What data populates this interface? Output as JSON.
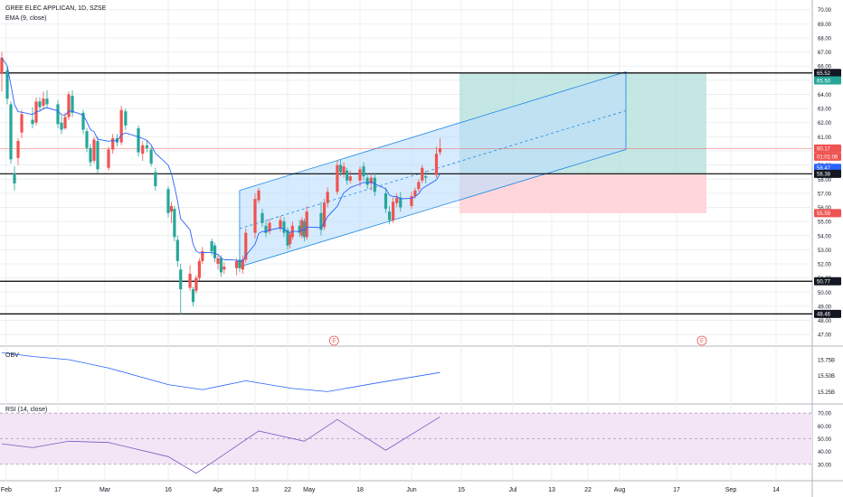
{
  "header": {
    "symbol_line": "GREE ELEC APPLICAN, 1D, SZSE",
    "indicator_line": "EMA (9, close)"
  },
  "colors": {
    "up": "#ef5350",
    "down": "#26a69a",
    "ema": "#2962ff",
    "channel_fill": "#bbdefb",
    "channel_line": "#1e88e5",
    "target_zone": "#b2dfdb",
    "stop_zone": "#ffcdd2",
    "horizontal_line": "#000000",
    "rsi_band": "#f3e5f5",
    "obv_line": "#2962ff",
    "rsi_line": "#7e57c2",
    "grid": "#eceff1"
  },
  "chart_data": [
    {
      "type": "candlestick",
      "title": "GREE ELEC APPLICAN, 1D, SZSE",
      "ylim": [
        46.5,
        70.3
      ],
      "y_ticks": [
        "70.00",
        "69.00",
        "68.00",
        "67.00",
        "66.00",
        "65.00",
        "64.00",
        "63.00",
        "62.00",
        "61.00",
        "60.00",
        "59.00",
        "58.00",
        "57.00",
        "56.00",
        "55.00",
        "54.00",
        "53.00",
        "52.00",
        "51.00",
        "50.00",
        "49.00",
        "48.00",
        "47.00"
      ],
      "x_ticks": [
        "Feb",
        "17",
        "Mar",
        "16",
        "Apr",
        "13",
        "22",
        "May",
        "18",
        "Jun",
        "15",
        "Jul",
        "13",
        "22",
        "Aug",
        "17",
        "Sep",
        "14"
      ],
      "price_labels": [
        {
          "value": "65.52",
          "kind": "line"
        },
        {
          "value": "65.50",
          "kind": "target"
        },
        {
          "value": "60.17",
          "kind": "last"
        },
        {
          "value": "01:01:06",
          "kind": "countdown"
        },
        {
          "value": "58.47",
          "kind": "ema"
        },
        {
          "value": "58.38",
          "kind": "line"
        },
        {
          "value": "55.59",
          "kind": "stop"
        },
        {
          "value": "50.77",
          "kind": "line"
        },
        {
          "value": "48.46",
          "kind": "line"
        }
      ],
      "horizontal_lines": [
        65.52,
        58.38,
        50.77,
        48.46
      ],
      "last_price": 60.17,
      "position": {
        "entry": 58.4,
        "target": 65.5,
        "stop": 55.59
      },
      "channel": {
        "start_date": "2020-04-08",
        "end_date": "2020-08-03",
        "lower_start": 51.8,
        "lower_end": 60.1,
        "upper_start": 57.2,
        "upper_end": 65.6
      },
      "event_markers": [
        {
          "date": "2020-05-10",
          "label": "E"
        },
        {
          "date": "2020-08-24",
          "label": "E"
        }
      ],
      "candles": [
        {
          "d": "2020-01-23",
          "o": 65.5,
          "h": 67.0,
          "l": 64.2,
          "c": 66.6
        },
        {
          "d": "2020-02-03",
          "o": 65.7,
          "h": 66.0,
          "l": 63.3,
          "c": 63.7
        },
        {
          "d": "2020-02-04",
          "o": 63.3,
          "h": 63.5,
          "l": 59.1,
          "c": 59.4
        },
        {
          "d": "2020-02-05",
          "o": 58.4,
          "h": 58.9,
          "l": 57.2,
          "c": 57.7
        },
        {
          "d": "2020-02-06",
          "o": 59.5,
          "h": 60.9,
          "l": 59.0,
          "c": 60.7
        },
        {
          "d": "2020-02-07",
          "o": 61.3,
          "h": 62.9,
          "l": 60.9,
          "c": 62.6
        },
        {
          "d": "2020-02-10",
          "o": 62.2,
          "h": 63.1,
          "l": 61.6,
          "c": 61.9
        },
        {
          "d": "2020-02-11",
          "o": 62.0,
          "h": 63.8,
          "l": 61.8,
          "c": 63.5
        },
        {
          "d": "2020-02-12",
          "o": 63.5,
          "h": 63.8,
          "l": 62.8,
          "c": 63.1
        },
        {
          "d": "2020-02-13",
          "o": 63.2,
          "h": 64.2,
          "l": 62.9,
          "c": 63.7
        },
        {
          "d": "2020-02-14",
          "o": 63.7,
          "h": 64.3,
          "l": 63.0,
          "c": 63.3
        },
        {
          "d": "2020-02-17",
          "o": 63.3,
          "h": 63.6,
          "l": 61.6,
          "c": 61.9
        },
        {
          "d": "2020-02-18",
          "o": 62.0,
          "h": 62.5,
          "l": 61.2,
          "c": 61.5
        },
        {
          "d": "2020-02-19",
          "o": 61.6,
          "h": 62.7,
          "l": 61.5,
          "c": 62.4
        },
        {
          "d": "2020-02-20",
          "o": 62.4,
          "h": 64.2,
          "l": 62.2,
          "c": 64.0
        },
        {
          "d": "2020-02-21",
          "o": 63.9,
          "h": 64.3,
          "l": 62.4,
          "c": 62.7
        },
        {
          "d": "2020-02-24",
          "o": 62.7,
          "h": 62.9,
          "l": 61.2,
          "c": 61.5
        },
        {
          "d": "2020-02-25",
          "o": 61.4,
          "h": 61.6,
          "l": 59.9,
          "c": 60.2
        },
        {
          "d": "2020-02-26",
          "o": 60.2,
          "h": 60.5,
          "l": 58.9,
          "c": 59.2
        },
        {
          "d": "2020-02-27",
          "o": 59.3,
          "h": 61.0,
          "l": 59.1,
          "c": 60.8
        },
        {
          "d": "2020-02-28",
          "o": 60.7,
          "h": 61.0,
          "l": 58.4,
          "c": 58.7
        },
        {
          "d": "2020-03-02",
          "o": 58.8,
          "h": 60.3,
          "l": 58.6,
          "c": 60.1
        },
        {
          "d": "2020-03-03",
          "o": 60.1,
          "h": 61.2,
          "l": 59.8,
          "c": 60.9
        },
        {
          "d": "2020-03-04",
          "o": 60.9,
          "h": 61.2,
          "l": 60.3,
          "c": 60.6
        },
        {
          "d": "2020-03-05",
          "o": 60.6,
          "h": 63.2,
          "l": 60.4,
          "c": 62.9
        },
        {
          "d": "2020-03-06",
          "o": 62.8,
          "h": 63.0,
          "l": 61.5,
          "c": 61.8
        },
        {
          "d": "2020-03-09",
          "o": 61.6,
          "h": 61.8,
          "l": 59.6,
          "c": 59.9
        },
        {
          "d": "2020-03-10",
          "o": 59.8,
          "h": 60.7,
          "l": 59.3,
          "c": 60.4
        },
        {
          "d": "2020-03-11",
          "o": 60.4,
          "h": 60.8,
          "l": 59.9,
          "c": 60.2
        },
        {
          "d": "2020-03-12",
          "o": 60.1,
          "h": 60.3,
          "l": 58.9,
          "c": 59.1
        },
        {
          "d": "2020-03-13",
          "o": 58.5,
          "h": 58.8,
          "l": 57.2,
          "c": 57.5
        },
        {
          "d": "2020-03-16",
          "o": 57.3,
          "h": 57.5,
          "l": 55.3,
          "c": 55.6
        },
        {
          "d": "2020-03-17",
          "o": 55.7,
          "h": 56.4,
          "l": 54.9,
          "c": 56.1
        },
        {
          "d": "2020-03-18",
          "o": 55.9,
          "h": 56.1,
          "l": 53.6,
          "c": 53.9
        },
        {
          "d": "2020-03-19",
          "o": 53.7,
          "h": 54.0,
          "l": 51.8,
          "c": 52.2
        },
        {
          "d": "2020-03-20",
          "o": 51.6,
          "h": 52.0,
          "l": 48.4,
          "c": 50.2
        },
        {
          "d": "2020-03-23",
          "o": 50.3,
          "h": 51.9,
          "l": 50.1,
          "c": 51.3
        },
        {
          "d": "2020-03-24",
          "o": 50.2,
          "h": 50.4,
          "l": 49.0,
          "c": 49.3
        },
        {
          "d": "2020-03-25",
          "o": 50.1,
          "h": 51.2,
          "l": 49.9,
          "c": 51.0
        },
        {
          "d": "2020-03-26",
          "o": 51.0,
          "h": 52.4,
          "l": 50.8,
          "c": 52.2
        },
        {
          "d": "2020-03-27",
          "o": 52.2,
          "h": 53.2,
          "l": 52.0,
          "c": 52.9
        },
        {
          "d": "2020-03-30",
          "o": 53.6,
          "h": 53.8,
          "l": 52.6,
          "c": 52.9
        },
        {
          "d": "2020-03-31",
          "o": 53.3,
          "h": 53.5,
          "l": 52.1,
          "c": 52.4
        },
        {
          "d": "2020-04-01",
          "o": 52.0,
          "h": 52.6,
          "l": 51.6,
          "c": 52.4
        },
        {
          "d": "2020-04-02",
          "o": 52.4,
          "h": 52.6,
          "l": 51.1,
          "c": 51.4
        },
        {
          "d": "2020-04-03",
          "o": 51.6,
          "h": 52.1,
          "l": 51.3,
          "c": 51.8
        },
        {
          "d": "2020-04-07",
          "o": 51.7,
          "h": 52.4,
          "l": 51.2,
          "c": 52.2
        },
        {
          "d": "2020-04-08",
          "o": 52.3,
          "h": 52.6,
          "l": 51.4,
          "c": 51.7
        },
        {
          "d": "2020-04-09",
          "o": 51.6,
          "h": 52.6,
          "l": 51.3,
          "c": 52.3
        },
        {
          "d": "2020-04-10",
          "o": 52.3,
          "h": 54.5,
          "l": 52.1,
          "c": 54.2
        },
        {
          "d": "2020-04-13",
          "o": 54.2,
          "h": 57.0,
          "l": 53.8,
          "c": 56.6
        },
        {
          "d": "2020-04-14",
          "o": 56.5,
          "h": 57.4,
          "l": 56.3,
          "c": 57.2
        },
        {
          "d": "2020-04-15",
          "o": 55.6,
          "h": 55.9,
          "l": 54.6,
          "c": 54.9
        },
        {
          "d": "2020-04-16",
          "o": 54.7,
          "h": 55.0,
          "l": 53.9,
          "c": 54.2
        },
        {
          "d": "2020-04-17",
          "o": 54.3,
          "h": 55.2,
          "l": 54.1,
          "c": 54.9
        },
        {
          "d": "2020-04-20",
          "o": 54.5,
          "h": 55.4,
          "l": 54.3,
          "c": 55.1
        },
        {
          "d": "2020-04-21",
          "o": 55.0,
          "h": 55.3,
          "l": 53.9,
          "c": 54.2
        },
        {
          "d": "2020-04-22",
          "o": 54.4,
          "h": 54.6,
          "l": 53.0,
          "c": 53.3
        },
        {
          "d": "2020-04-23",
          "o": 53.4,
          "h": 54.3,
          "l": 53.1,
          "c": 54.1
        },
        {
          "d": "2020-04-24",
          "o": 53.9,
          "h": 55.0,
          "l": 53.7,
          "c": 54.7
        },
        {
          "d": "2020-04-27",
          "o": 54.7,
          "h": 55.1,
          "l": 53.9,
          "c": 54.2
        },
        {
          "d": "2020-04-28",
          "o": 54.0,
          "h": 55.3,
          "l": 53.8,
          "c": 55.1
        },
        {
          "d": "2020-04-29",
          "o": 55.0,
          "h": 55.2,
          "l": 53.6,
          "c": 53.9
        },
        {
          "d": "2020-04-30",
          "o": 53.9,
          "h": 56.1,
          "l": 53.7,
          "c": 55.7
        },
        {
          "d": "2020-05-06",
          "o": 55.6,
          "h": 56.4,
          "l": 54.0,
          "c": 54.4
        },
        {
          "d": "2020-05-07",
          "o": 54.6,
          "h": 56.6,
          "l": 54.4,
          "c": 56.3
        },
        {
          "d": "2020-05-08",
          "o": 56.3,
          "h": 57.4,
          "l": 56.0,
          "c": 57.1
        },
        {
          "d": "2020-05-11",
          "o": 57.1,
          "h": 59.3,
          "l": 56.9,
          "c": 59.0
        },
        {
          "d": "2020-05-12",
          "o": 59.0,
          "h": 59.4,
          "l": 58.2,
          "c": 58.5
        },
        {
          "d": "2020-05-13",
          "o": 58.4,
          "h": 59.2,
          "l": 58.1,
          "c": 58.9
        },
        {
          "d": "2020-05-14",
          "o": 58.6,
          "h": 58.8,
          "l": 57.6,
          "c": 57.9
        },
        {
          "d": "2020-05-15",
          "o": 57.9,
          "h": 58.6,
          "l": 57.7,
          "c": 58.2
        },
        {
          "d": "2020-05-18",
          "o": 57.9,
          "h": 58.9,
          "l": 57.5,
          "c": 58.7
        },
        {
          "d": "2020-05-19",
          "o": 58.9,
          "h": 59.2,
          "l": 57.9,
          "c": 58.2
        },
        {
          "d": "2020-05-20",
          "o": 58.1,
          "h": 58.4,
          "l": 57.3,
          "c": 57.6
        },
        {
          "d": "2020-05-21",
          "o": 57.7,
          "h": 58.4,
          "l": 57.2,
          "c": 58.1
        },
        {
          "d": "2020-05-22",
          "o": 58.1,
          "h": 58.4,
          "l": 56.8,
          "c": 57.1
        },
        {
          "d": "2020-05-25",
          "o": 57.0,
          "h": 57.4,
          "l": 55.6,
          "c": 55.9
        },
        {
          "d": "2020-05-26",
          "o": 55.7,
          "h": 56.1,
          "l": 54.8,
          "c": 55.1
        },
        {
          "d": "2020-05-27",
          "o": 55.1,
          "h": 56.7,
          "l": 54.9,
          "c": 56.4
        },
        {
          "d": "2020-05-28",
          "o": 56.3,
          "h": 57.0,
          "l": 56.0,
          "c": 56.7
        },
        {
          "d": "2020-05-29",
          "o": 56.7,
          "h": 57.1,
          "l": 55.7,
          "c": 56.0
        },
        {
          "d": "2020-06-01",
          "o": 56.1,
          "h": 57.1,
          "l": 55.9,
          "c": 56.8
        },
        {
          "d": "2020-06-02",
          "o": 56.8,
          "h": 57.4,
          "l": 56.6,
          "c": 57.2
        },
        {
          "d": "2020-06-03",
          "o": 57.3,
          "h": 58.0,
          "l": 57.1,
          "c": 57.8
        },
        {
          "d": "2020-06-04",
          "o": 57.9,
          "h": 59.0,
          "l": 57.7,
          "c": 58.8
        },
        {
          "d": "2020-06-05",
          "o": 58.2,
          "h": 58.6,
          "l": 57.7,
          "c": 58.1
        },
        {
          "d": "2020-06-08",
          "o": 58.3,
          "h": 60.3,
          "l": 58.1,
          "c": 59.8
        },
        {
          "d": "2020-06-09",
          "o": 59.9,
          "h": 60.9,
          "l": 59.7,
          "c": 60.17
        }
      ]
    },
    {
      "type": "line",
      "title": "OBV",
      "y_ticks": [
        "15.75B",
        "15.50B",
        "15.25B"
      ],
      "ylim": [
        15.1,
        15.92
      ],
      "x": [
        "2020-01-23",
        "2020-02-10",
        "2020-02-20",
        "2020-03-02",
        "2020-03-16",
        "2020-03-27",
        "2020-04-10",
        "2020-04-24",
        "2020-05-08",
        "2020-05-22",
        "2020-06-09"
      ],
      "values": [
        15.86,
        15.8,
        15.75,
        15.62,
        15.36,
        15.28,
        15.42,
        15.3,
        15.25,
        15.38,
        15.55
      ]
    },
    {
      "type": "line",
      "title": "RSI (14, close)",
      "y_ticks": [
        "70.00",
        "60.00",
        "50.00",
        "40.00",
        "30.00"
      ],
      "ylim": [
        20,
        75
      ],
      "band": [
        30,
        70
      ],
      "x": [
        "2020-01-23",
        "2020-02-10",
        "2020-02-20",
        "2020-03-02",
        "2020-03-16",
        "2020-03-25",
        "2020-04-14",
        "2020-04-29",
        "2020-05-11",
        "2020-05-25",
        "2020-06-09"
      ],
      "values": [
        46,
        43,
        48,
        47,
        36,
        23,
        56,
        48,
        65,
        41,
        67
      ]
    }
  ]
}
